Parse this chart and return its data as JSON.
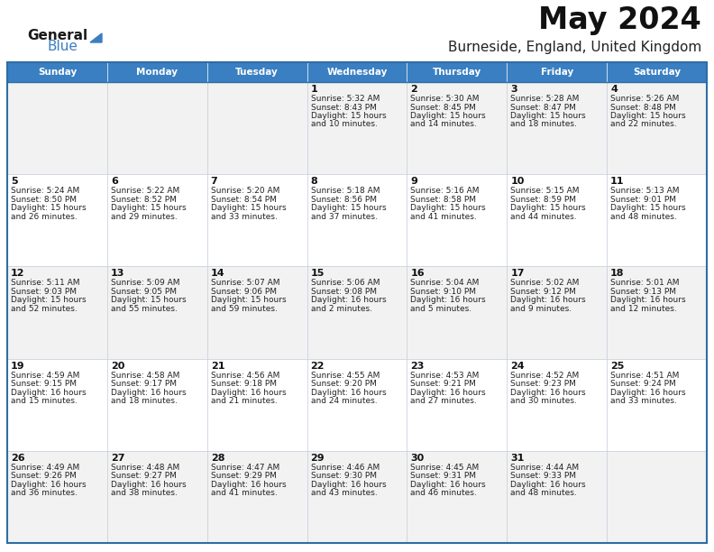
{
  "title": "May 2024",
  "subtitle": "Burneside, England, United Kingdom",
  "header_color": "#3a7fc1",
  "header_text_color": "#ffffff",
  "row_bg_light": "#f2f2f2",
  "row_bg_white": "#ffffff",
  "border_color": "#2e6da4",
  "cell_border_color": "#c0c8d8",
  "days_of_week": [
    "Sunday",
    "Monday",
    "Tuesday",
    "Wednesday",
    "Thursday",
    "Friday",
    "Saturday"
  ],
  "calendar_data": [
    [
      {
        "day": "",
        "sunrise": "",
        "sunset": "",
        "daylight": ""
      },
      {
        "day": "",
        "sunrise": "",
        "sunset": "",
        "daylight": ""
      },
      {
        "day": "",
        "sunrise": "",
        "sunset": "",
        "daylight": ""
      },
      {
        "day": "1",
        "sunrise": "5:32 AM",
        "sunset": "8:43 PM",
        "daylight": "15 hours\nand 10 minutes."
      },
      {
        "day": "2",
        "sunrise": "5:30 AM",
        "sunset": "8:45 PM",
        "daylight": "15 hours\nand 14 minutes."
      },
      {
        "day": "3",
        "sunrise": "5:28 AM",
        "sunset": "8:47 PM",
        "daylight": "15 hours\nand 18 minutes."
      },
      {
        "day": "4",
        "sunrise": "5:26 AM",
        "sunset": "8:48 PM",
        "daylight": "15 hours\nand 22 minutes."
      }
    ],
    [
      {
        "day": "5",
        "sunrise": "5:24 AM",
        "sunset": "8:50 PM",
        "daylight": "15 hours\nand 26 minutes."
      },
      {
        "day": "6",
        "sunrise": "5:22 AM",
        "sunset": "8:52 PM",
        "daylight": "15 hours\nand 29 minutes."
      },
      {
        "day": "7",
        "sunrise": "5:20 AM",
        "sunset": "8:54 PM",
        "daylight": "15 hours\nand 33 minutes."
      },
      {
        "day": "8",
        "sunrise": "5:18 AM",
        "sunset": "8:56 PM",
        "daylight": "15 hours\nand 37 minutes."
      },
      {
        "day": "9",
        "sunrise": "5:16 AM",
        "sunset": "8:58 PM",
        "daylight": "15 hours\nand 41 minutes."
      },
      {
        "day": "10",
        "sunrise": "5:15 AM",
        "sunset": "8:59 PM",
        "daylight": "15 hours\nand 44 minutes."
      },
      {
        "day": "11",
        "sunrise": "5:13 AM",
        "sunset": "9:01 PM",
        "daylight": "15 hours\nand 48 minutes."
      }
    ],
    [
      {
        "day": "12",
        "sunrise": "5:11 AM",
        "sunset": "9:03 PM",
        "daylight": "15 hours\nand 52 minutes."
      },
      {
        "day": "13",
        "sunrise": "5:09 AM",
        "sunset": "9:05 PM",
        "daylight": "15 hours\nand 55 minutes."
      },
      {
        "day": "14",
        "sunrise": "5:07 AM",
        "sunset": "9:06 PM",
        "daylight": "15 hours\nand 59 minutes."
      },
      {
        "day": "15",
        "sunrise": "5:06 AM",
        "sunset": "9:08 PM",
        "daylight": "16 hours\nand 2 minutes."
      },
      {
        "day": "16",
        "sunrise": "5:04 AM",
        "sunset": "9:10 PM",
        "daylight": "16 hours\nand 5 minutes."
      },
      {
        "day": "17",
        "sunrise": "5:02 AM",
        "sunset": "9:12 PM",
        "daylight": "16 hours\nand 9 minutes."
      },
      {
        "day": "18",
        "sunrise": "5:01 AM",
        "sunset": "9:13 PM",
        "daylight": "16 hours\nand 12 minutes."
      }
    ],
    [
      {
        "day": "19",
        "sunrise": "4:59 AM",
        "sunset": "9:15 PM",
        "daylight": "16 hours\nand 15 minutes."
      },
      {
        "day": "20",
        "sunrise": "4:58 AM",
        "sunset": "9:17 PM",
        "daylight": "16 hours\nand 18 minutes."
      },
      {
        "day": "21",
        "sunrise": "4:56 AM",
        "sunset": "9:18 PM",
        "daylight": "16 hours\nand 21 minutes."
      },
      {
        "day": "22",
        "sunrise": "4:55 AM",
        "sunset": "9:20 PM",
        "daylight": "16 hours\nand 24 minutes."
      },
      {
        "day": "23",
        "sunrise": "4:53 AM",
        "sunset": "9:21 PM",
        "daylight": "16 hours\nand 27 minutes."
      },
      {
        "day": "24",
        "sunrise": "4:52 AM",
        "sunset": "9:23 PM",
        "daylight": "16 hours\nand 30 minutes."
      },
      {
        "day": "25",
        "sunrise": "4:51 AM",
        "sunset": "9:24 PM",
        "daylight": "16 hours\nand 33 minutes."
      }
    ],
    [
      {
        "day": "26",
        "sunrise": "4:49 AM",
        "sunset": "9:26 PM",
        "daylight": "16 hours\nand 36 minutes."
      },
      {
        "day": "27",
        "sunrise": "4:48 AM",
        "sunset": "9:27 PM",
        "daylight": "16 hours\nand 38 minutes."
      },
      {
        "day": "28",
        "sunrise": "4:47 AM",
        "sunset": "9:29 PM",
        "daylight": "16 hours\nand 41 minutes."
      },
      {
        "day": "29",
        "sunrise": "4:46 AM",
        "sunset": "9:30 PM",
        "daylight": "16 hours\nand 43 minutes."
      },
      {
        "day": "30",
        "sunrise": "4:45 AM",
        "sunset": "9:31 PM",
        "daylight": "16 hours\nand 46 minutes."
      },
      {
        "day": "31",
        "sunrise": "4:44 AM",
        "sunset": "9:33 PM",
        "daylight": "16 hours\nand 48 minutes."
      },
      {
        "day": "",
        "sunrise": "",
        "sunset": "",
        "daylight": ""
      }
    ]
  ],
  "logo_general_color": "#1a1a1a",
  "logo_blue_color": "#3a7fc1",
  "logo_triangle_color": "#3a7fc1"
}
